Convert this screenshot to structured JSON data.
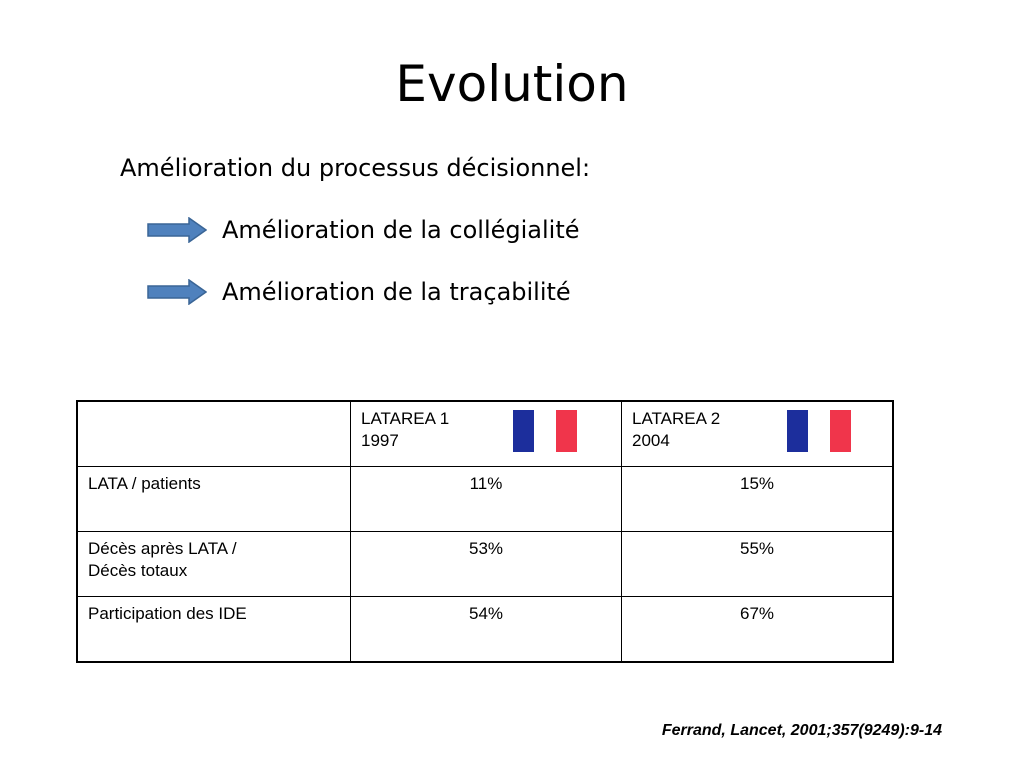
{
  "slide": {
    "title": "Evolution",
    "subtitle": "Amélioration du processus décisionnel:",
    "bullets": [
      "Amélioration de la collégialité",
      "Amélioration de la traçabilité"
    ],
    "arrow_icon": "right-arrow-icon",
    "arrow_color": "#4F81BD"
  },
  "table": {
    "headers": [
      {
        "label": "",
        "year": ""
      },
      {
        "label": "LATAREA 1",
        "year": "1997",
        "flag_icon": "france-flag-icon"
      },
      {
        "label": "LATAREA 2",
        "year": "2004",
        "flag_icon": "france-flag-icon"
      }
    ],
    "flag_colors": [
      "#1C2E9C",
      "#FFFFFF",
      "#F0354B"
    ],
    "rows": [
      {
        "label_lines": [
          "LATA / patients"
        ],
        "values": [
          "11%",
          "15%"
        ]
      },
      {
        "label_lines": [
          "Décès après LATA /",
          "Décès totaux"
        ],
        "values": [
          "53%",
          "55%"
        ]
      },
      {
        "label_lines": [
          "Participation des IDE"
        ],
        "values": [
          "54%",
          "67%"
        ]
      }
    ]
  },
  "citation": "Ferrand, Lancet, 2001;357(9249):9-14"
}
